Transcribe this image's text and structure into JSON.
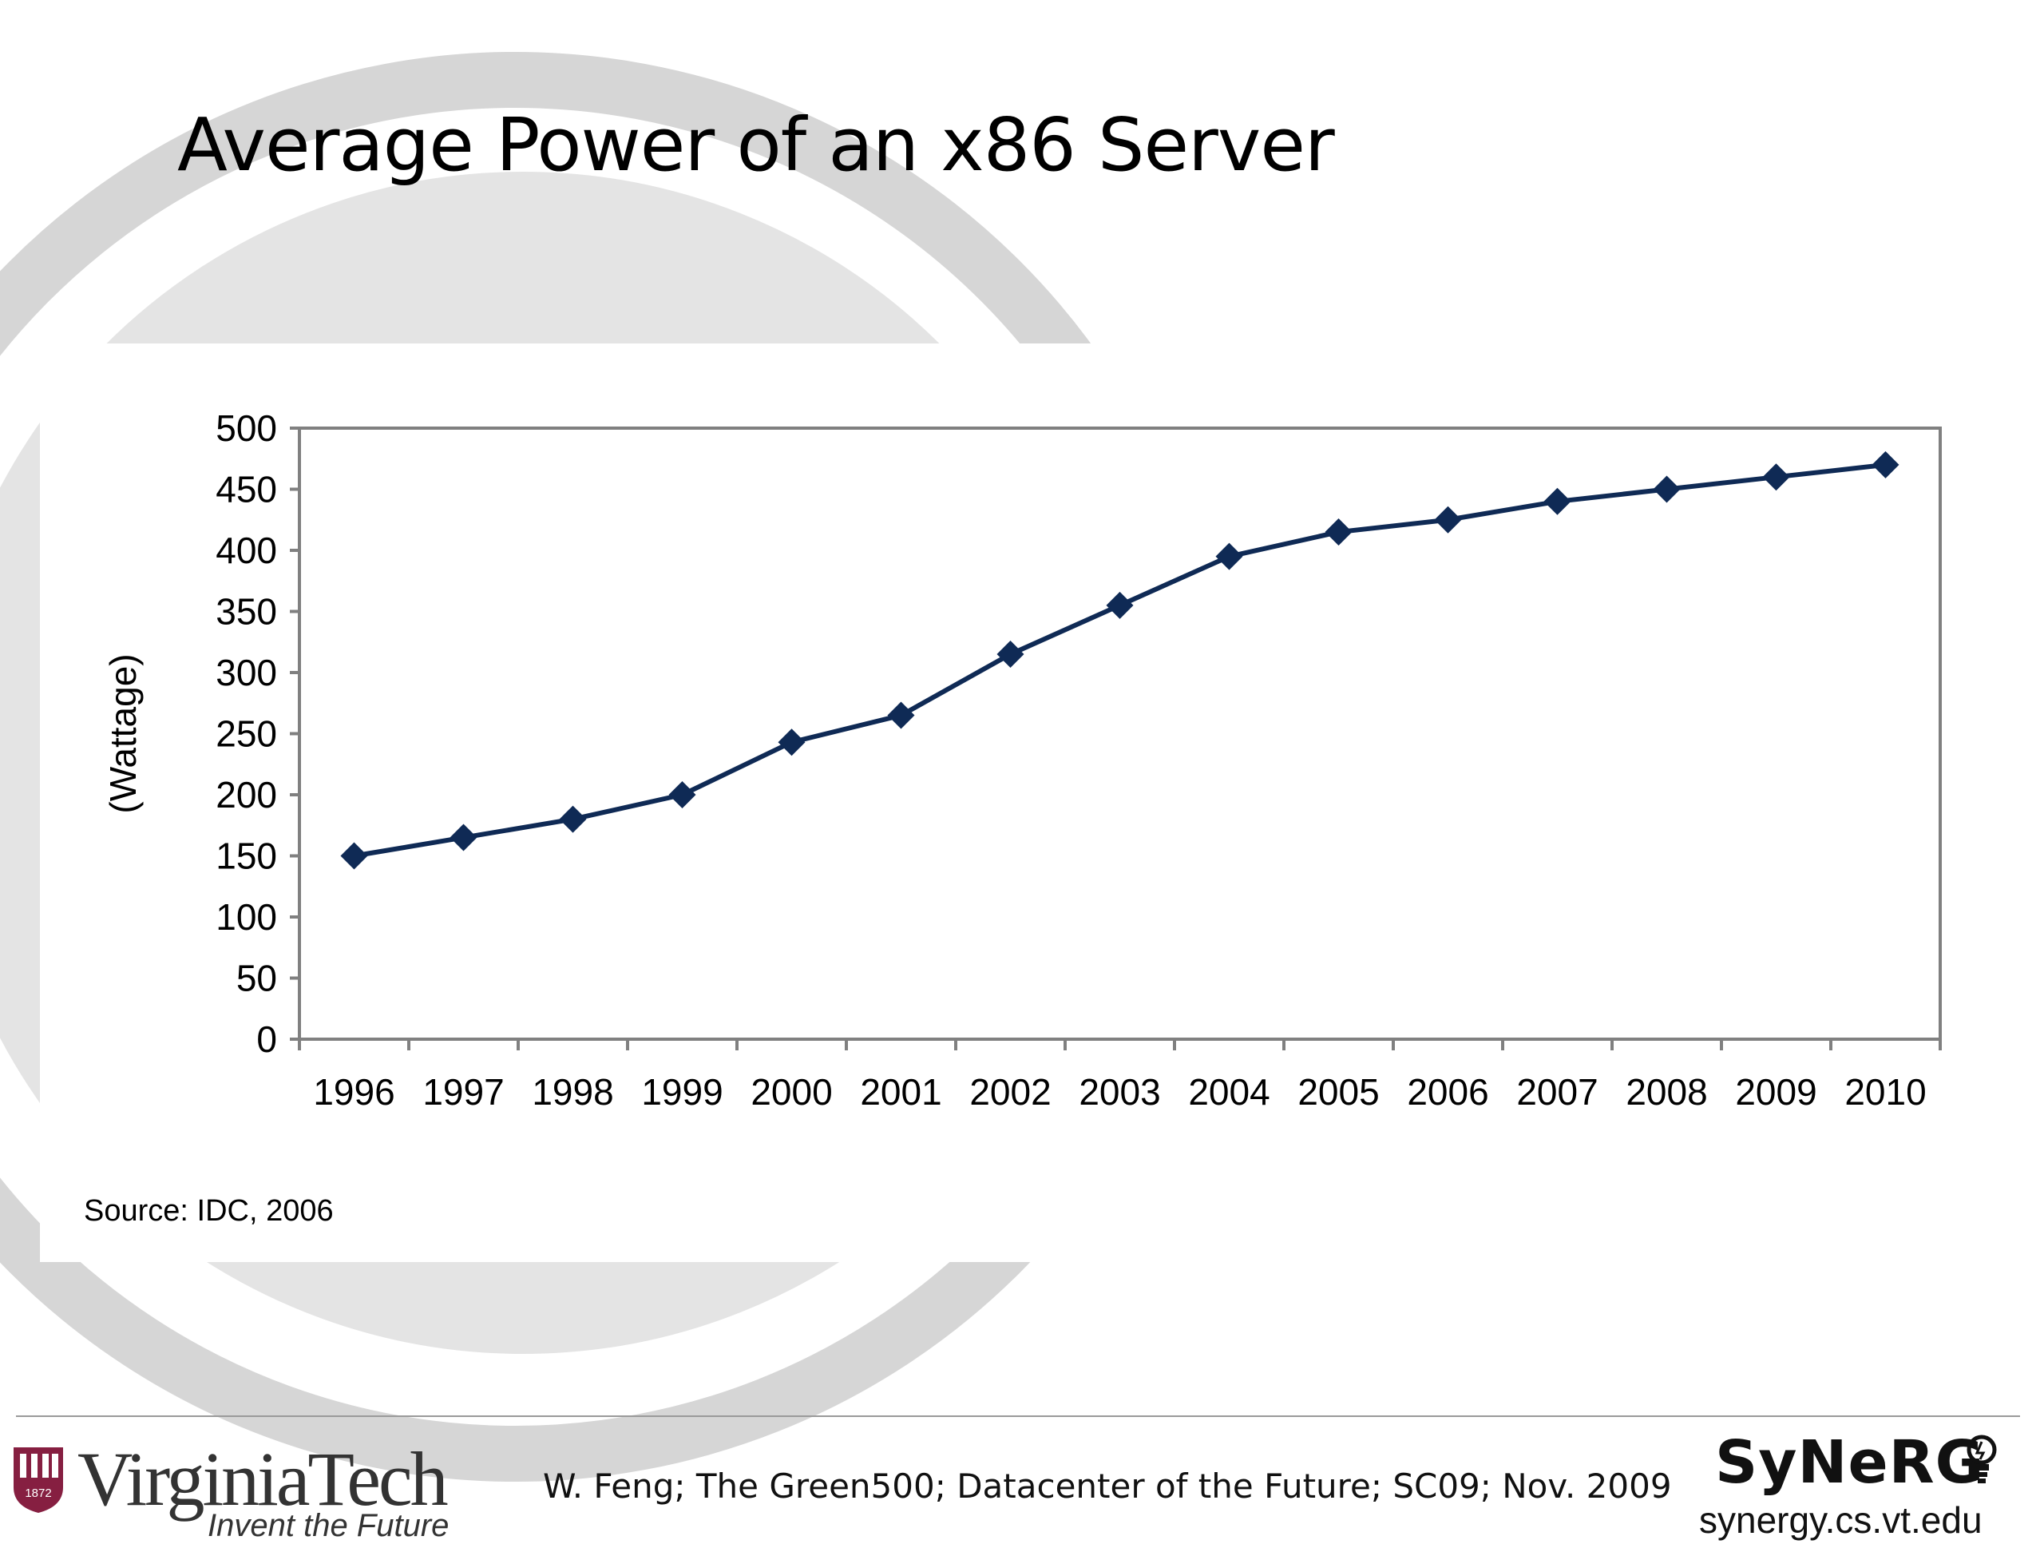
{
  "slide": {
    "title": "Average Power of an x86 Server",
    "source": "Source: IDC, 2006"
  },
  "footer": {
    "logo_name": "VirginiaTech",
    "logo_tagline": "Invent the Future",
    "logo_year": "1872",
    "citation": "W. Feng; The Green500; Datacenter of the Future; SC09; Nov. 2009",
    "lab_logo": "SyNeRG",
    "lab_url": "synergy.cs.vt.edu"
  },
  "colors": {
    "series": "#0f2a55",
    "axis": "#808080",
    "background_art": "#d4d4d4",
    "vt_maroon": "#861f41"
  },
  "icons": {
    "lab_logo_mark": "lightbulb-icon",
    "vt_logo_mark": "shield-icon"
  },
  "chart_data": {
    "type": "line",
    "title": "",
    "xlabel": "",
    "ylabel": "(Wattage)",
    "ylim": [
      0,
      500
    ],
    "yticks": [
      0,
      50,
      100,
      150,
      200,
      250,
      300,
      350,
      400,
      450,
      500
    ],
    "grid": false,
    "legend": "none",
    "marker": "diamond",
    "categories": [
      "1996",
      "1997",
      "1998",
      "1999",
      "2000",
      "2001",
      "2002",
      "2003",
      "2004",
      "2005",
      "2006",
      "2007",
      "2008",
      "2009",
      "2010"
    ],
    "series": [
      {
        "values": [
          150,
          165,
          180,
          200,
          243,
          265,
          315,
          355,
          395,
          415,
          425,
          440,
          450,
          460,
          470
        ]
      }
    ]
  }
}
